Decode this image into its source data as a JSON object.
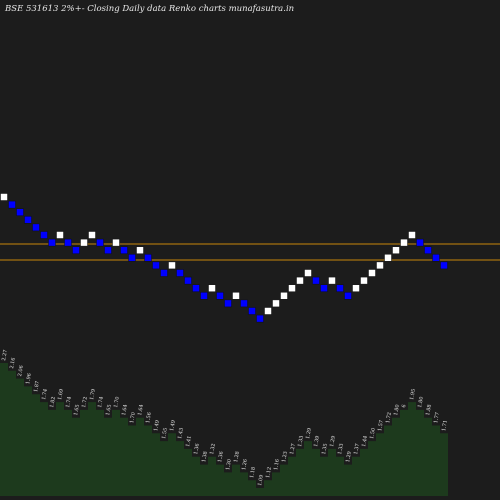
{
  "chart_data": {
    "type": "renko",
    "title": "BSE 531613 2%+- Closing Daily data Renko  charts munafasutra.in",
    "colors": {
      "background": "#1c1c1c",
      "up_brick": "#ffffff",
      "down_brick": "#0000ff",
      "reference_line": "#c8860a",
      "volume_fill": "#1d3a1d",
      "volume_label": "#e6e6e6"
    },
    "bricks": [
      {
        "dir": "up",
        "level": 0
      },
      {
        "dir": "down",
        "level": 1
      },
      {
        "dir": "down",
        "level": 2
      },
      {
        "dir": "down",
        "level": 3
      },
      {
        "dir": "down",
        "level": 4
      },
      {
        "dir": "down",
        "level": 5
      },
      {
        "dir": "down",
        "level": 6
      },
      {
        "dir": "up",
        "level": 5
      },
      {
        "dir": "down",
        "level": 6
      },
      {
        "dir": "down",
        "level": 7
      },
      {
        "dir": "up",
        "level": 6
      },
      {
        "dir": "up",
        "level": 5
      },
      {
        "dir": "down",
        "level": 6
      },
      {
        "dir": "down",
        "level": 7
      },
      {
        "dir": "up",
        "level": 6
      },
      {
        "dir": "down",
        "level": 7
      },
      {
        "dir": "down",
        "level": 8
      },
      {
        "dir": "up",
        "level": 7
      },
      {
        "dir": "down",
        "level": 8
      },
      {
        "dir": "down",
        "level": 9
      },
      {
        "dir": "down",
        "level": 10
      },
      {
        "dir": "up",
        "level": 9
      },
      {
        "dir": "down",
        "level": 10
      },
      {
        "dir": "down",
        "level": 11
      },
      {
        "dir": "down",
        "level": 12
      },
      {
        "dir": "down",
        "level": 13
      },
      {
        "dir": "up",
        "level": 12
      },
      {
        "dir": "down",
        "level": 13
      },
      {
        "dir": "down",
        "level": 14
      },
      {
        "dir": "up",
        "level": 13
      },
      {
        "dir": "down",
        "level": 14
      },
      {
        "dir": "down",
        "level": 15
      },
      {
        "dir": "down",
        "level": 16
      },
      {
        "dir": "up",
        "level": 15
      },
      {
        "dir": "up",
        "level": 14
      },
      {
        "dir": "up",
        "level": 13
      },
      {
        "dir": "up",
        "level": 12
      },
      {
        "dir": "up",
        "level": 11
      },
      {
        "dir": "up",
        "level": 10
      },
      {
        "dir": "down",
        "level": 11
      },
      {
        "dir": "down",
        "level": 12
      },
      {
        "dir": "up",
        "level": 11
      },
      {
        "dir": "down",
        "level": 12
      },
      {
        "dir": "down",
        "level": 13
      },
      {
        "dir": "up",
        "level": 12
      },
      {
        "dir": "up",
        "level": 11
      },
      {
        "dir": "up",
        "level": 10
      },
      {
        "dir": "up",
        "level": 9
      },
      {
        "dir": "up",
        "level": 8
      },
      {
        "dir": "up",
        "level": 7
      },
      {
        "dir": "up",
        "level": 6
      },
      {
        "dir": "up",
        "level": 5
      },
      {
        "dir": "down",
        "level": 6
      },
      {
        "dir": "down",
        "level": 7
      },
      {
        "dir": "down",
        "level": 8
      },
      {
        "dir": "down",
        "level": 9
      }
    ],
    "reference_lines": [
      244,
      260
    ],
    "volume_labels": [
      "2.27",
      "2.16",
      "2.06",
      "1.96",
      "1.87",
      "1.74",
      "1.82",
      "1.69",
      "1.74",
      "1.65",
      "1.72",
      "1.79",
      "1.74",
      "1.65",
      "1.70",
      "1.64",
      "1.70",
      "1.64",
      "1.56",
      "1.49",
      "1.55",
      "1.49",
      "1.43",
      "1.41",
      "1.36",
      "1.38",
      "1.32",
      "1.36",
      "1.30",
      "1.28",
      "1.26",
      "1.18",
      "1.09",
      "1.12",
      "1.16",
      "1.23",
      "1.27",
      "1.33",
      "1.29",
      "1.39",
      "1.35",
      "1.29",
      "1.33",
      "1.29",
      "1.37",
      "1.44",
      "1.50",
      "1.57",
      "1.72",
      "1.80",
      "6",
      "1.95",
      "1.80",
      "1.88",
      "1.77",
      "1.71"
    ]
  }
}
